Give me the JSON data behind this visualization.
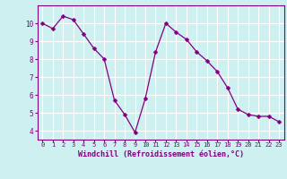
{
  "x": [
    0,
    1,
    2,
    3,
    4,
    5,
    6,
    7,
    8,
    9,
    10,
    11,
    12,
    13,
    14,
    15,
    16,
    17,
    18,
    19,
    20,
    21,
    22,
    23
  ],
  "y": [
    10.0,
    9.7,
    10.4,
    10.2,
    9.4,
    8.6,
    8.0,
    5.7,
    4.9,
    3.9,
    5.8,
    8.4,
    10.0,
    9.5,
    9.1,
    8.4,
    7.9,
    7.3,
    6.4,
    5.2,
    4.9,
    4.8,
    4.8,
    4.5
  ],
  "line_color": "#800080",
  "marker": "D",
  "marker_size": 2.5,
  "xlabel": "Windchill (Refroidissement éolien,°C)",
  "xlim": [
    -0.5,
    23.5
  ],
  "ylim": [
    3.5,
    11.0
  ],
  "yticks": [
    4,
    5,
    6,
    7,
    8,
    9,
    10
  ],
  "xticks": [
    0,
    1,
    2,
    3,
    4,
    5,
    6,
    7,
    8,
    9,
    10,
    11,
    12,
    13,
    14,
    15,
    16,
    17,
    18,
    19,
    20,
    21,
    22,
    23
  ],
  "background_color": "#cff0f0",
  "grid_color": "#ffffff",
  "tick_color": "#800080",
  "label_color": "#800080",
  "spine_color": "#800080"
}
